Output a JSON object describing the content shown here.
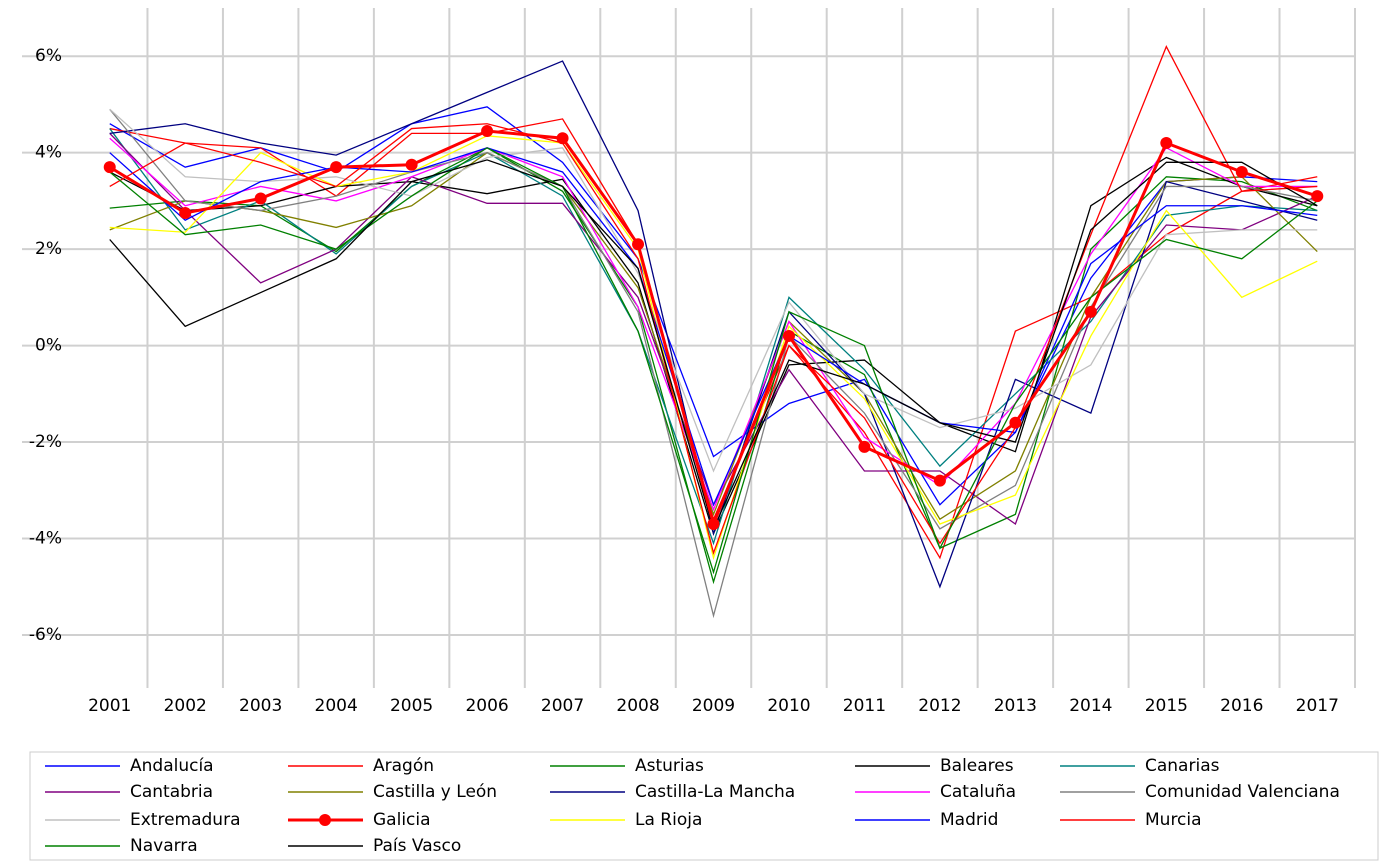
{
  "chart_data": {
    "type": "line",
    "categories": [
      "2001",
      "2002",
      "2003",
      "2004",
      "2005",
      "2006",
      "2007",
      "2008",
      "2009",
      "2010",
      "2011",
      "2012",
      "2013",
      "2014",
      "2015",
      "2016",
      "2017"
    ],
    "ylim": [
      -7.1,
      7
    ],
    "yticks": [
      {
        "value": 6,
        "label": "6%"
      },
      {
        "value": 4,
        "label": "4%"
      },
      {
        "value": 2,
        "label": "2%"
      },
      {
        "value": 0,
        "label": "0%"
      },
      {
        "value": -2,
        "label": "-2%"
      },
      {
        "value": -4,
        "label": "-4%"
      },
      {
        "value": -6,
        "label": "-6%"
      }
    ],
    "grid": true,
    "legend": "bottom",
    "series": [
      {
        "name": "Andalucía",
        "color": "#0000ff",
        "values": [
          4.6,
          3.7,
          4.1,
          3.6,
          4.6,
          4.95,
          3.8,
          1.8,
          -2.3,
          -1.2,
          -0.7,
          -3.3,
          -1.8,
          1.4,
          3.4,
          3.5,
          3.4
        ]
      },
      {
        "name": "Aragón",
        "color": "#ff0000",
        "values": [
          4.5,
          4.2,
          4.1,
          3.1,
          4.4,
          4.4,
          4.7,
          2.1,
          -3.6,
          0.0,
          -1.8,
          -4.4,
          0.3,
          1.0,
          2.3,
          3.2,
          3.5
        ]
      },
      {
        "name": "Asturias",
        "color": "#008000",
        "values": [
          2.85,
          3.0,
          2.9,
          1.95,
          3.3,
          4.1,
          3.2,
          0.8,
          -4.9,
          0.3,
          -0.6,
          -4.2,
          -3.5,
          2.0,
          3.5,
          3.4,
          2.8
        ]
      },
      {
        "name": "Baleares",
        "color": "#000000",
        "values": [
          3.6,
          2.8,
          2.9,
          3.3,
          3.4,
          3.15,
          3.45,
          1.3,
          -3.9,
          -0.4,
          -0.3,
          -1.6,
          -2.2,
          2.9,
          3.9,
          3.3,
          2.9
        ]
      },
      {
        "name": "Canarias",
        "color": "#008080",
        "values": [
          4.5,
          2.4,
          3.0,
          1.9,
          3.3,
          4.0,
          3.1,
          0.3,
          -4.1,
          1.0,
          -0.5,
          -2.5,
          -1.0,
          0.5,
          2.7,
          2.9,
          2.8
        ]
      },
      {
        "name": "Cantabria",
        "color": "#800080",
        "values": [
          4.4,
          2.8,
          1.3,
          2.0,
          3.5,
          2.95,
          2.95,
          1.0,
          -3.3,
          -0.5,
          -2.6,
          -2.6,
          -3.7,
          0.6,
          2.5,
          2.4,
          3.1
        ]
      },
      {
        "name": "Castilla y León",
        "color": "#808000",
        "values": [
          2.4,
          3.0,
          2.8,
          2.45,
          2.9,
          4.0,
          3.3,
          1.2,
          -3.5,
          0.5,
          -1.0,
          -3.6,
          -2.6,
          1.0,
          3.4,
          3.5,
          1.95
        ]
      },
      {
        "name": "Castilla-La Mancha",
        "color": "#000080",
        "values": [
          4.4,
          4.6,
          4.2,
          3.95,
          4.6,
          5.25,
          5.9,
          2.8,
          -3.9,
          0.7,
          -1.0,
          -5.0,
          -0.7,
          -1.4,
          3.4,
          3.0,
          2.6
        ]
      },
      {
        "name": "Cataluña",
        "color": "#ff00ff",
        "values": [
          4.3,
          2.9,
          3.3,
          3.0,
          3.5,
          4.1,
          3.5,
          0.8,
          -3.4,
          0.5,
          -1.9,
          -2.9,
          -1.2,
          1.9,
          4.1,
          3.3,
          3.3
        ]
      },
      {
        "name": "Comunidad Valenciana",
        "color": "#808080",
        "values": [
          4.9,
          3.0,
          2.8,
          3.1,
          3.6,
          4.0,
          3.3,
          0.7,
          -5.6,
          0.2,
          -1.4,
          -3.8,
          -2.9,
          0.8,
          3.3,
          3.3,
          3.0
        ]
      },
      {
        "name": "Extremadura",
        "color": "#c0c0c0",
        "values": [
          4.9,
          3.5,
          3.4,
          3.5,
          3.1,
          3.9,
          4.1,
          1.5,
          -2.6,
          0.9,
          -1.0,
          -1.7,
          -1.3,
          -0.4,
          2.3,
          2.4,
          2.4
        ]
      },
      {
        "name": "Galicia",
        "color": "#ff0000",
        "line_width": 3,
        "marker": true,
        "values": [
          3.7,
          2.75,
          3.05,
          3.7,
          3.75,
          4.45,
          4.3,
          2.1,
          -3.7,
          0.2,
          -2.1,
          -2.8,
          -1.6,
          0.7,
          4.2,
          3.6,
          3.1
        ]
      },
      {
        "name": "La Rioja",
        "color": "#ffff00",
        "values": [
          2.45,
          2.35,
          4.0,
          3.3,
          3.6,
          4.35,
          4.2,
          2.0,
          -4.4,
          0.4,
          -1.1,
          -3.7,
          -3.1,
          0.2,
          2.8,
          1.0,
          1.75
        ]
      },
      {
        "name": "Madrid",
        "color": "#0000ff",
        "values": [
          4.0,
          2.6,
          3.4,
          3.7,
          3.6,
          4.1,
          3.6,
          1.6,
          -3.3,
          0.2,
          -0.8,
          -1.6,
          -1.8,
          1.7,
          2.9,
          2.9,
          2.7
        ]
      },
      {
        "name": "Murcia",
        "color": "#ff0000",
        "values": [
          3.3,
          4.2,
          3.8,
          3.3,
          4.5,
          4.6,
          4.2,
          1.8,
          -4.3,
          0.0,
          -1.5,
          -4.1,
          -1.7,
          2.3,
          6.2,
          3.2,
          3.3
        ]
      },
      {
        "name": "Navarra",
        "color": "#008000",
        "values": [
          3.6,
          2.3,
          2.5,
          2.0,
          3.1,
          4.1,
          3.3,
          0.3,
          -4.7,
          0.7,
          0.0,
          -4.2,
          -1.2,
          1.0,
          2.2,
          1.8,
          3.0
        ]
      },
      {
        "name": "País Vasco",
        "color": "#000000",
        "values": [
          2.2,
          0.4,
          1.1,
          1.8,
          3.4,
          3.85,
          3.3,
          1.6,
          -3.8,
          -0.3,
          -0.8,
          -1.6,
          -2.0,
          2.4,
          3.8,
          3.8,
          2.9
        ]
      }
    ]
  }
}
